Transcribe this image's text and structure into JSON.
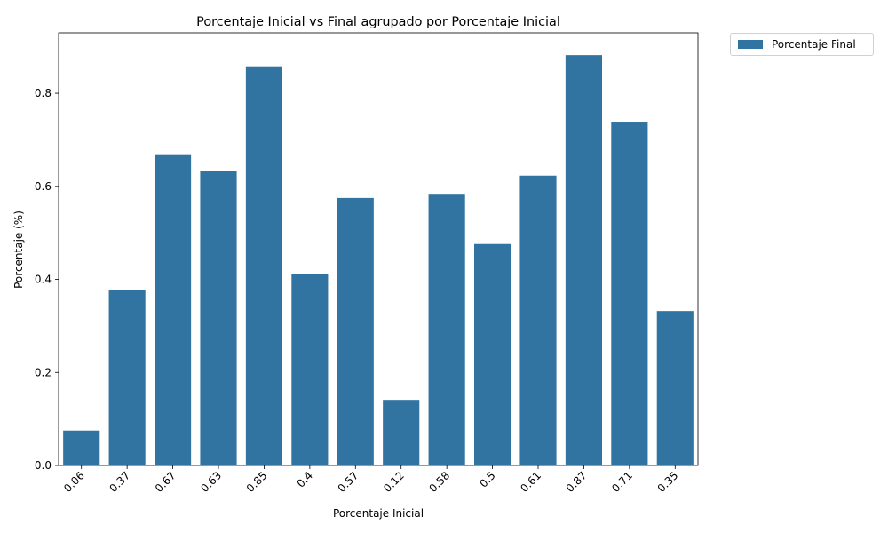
{
  "chart_data": {
    "type": "bar",
    "title": "Porcentaje Inicial vs Final agrupado por Porcentaje Inicial",
    "xlabel": "Porcentaje Inicial",
    "ylabel": "Porcentaje (%)",
    "categories": [
      "0.06",
      "0.37",
      "0.67",
      "0.63",
      "0.85",
      "0.4",
      "0.57",
      "0.12",
      "0.58",
      "0.5",
      "0.61",
      "0.87",
      "0.71",
      "0.35"
    ],
    "series": [
      {
        "name": "Porcentaje Final",
        "color": "#3274a1",
        "values": [
          0.075,
          0.378,
          0.669,
          0.634,
          0.858,
          0.412,
          0.575,
          0.141,
          0.584,
          0.476,
          0.623,
          0.882,
          0.739,
          0.332
        ]
      }
    ],
    "ylim": [
      0,
      0.93
    ],
    "yticks": [
      "0.0",
      "0.2",
      "0.4",
      "0.6",
      "0.8"
    ],
    "xtick_rotation": 45,
    "grid": false,
    "legend_position": "outside-top-right"
  }
}
